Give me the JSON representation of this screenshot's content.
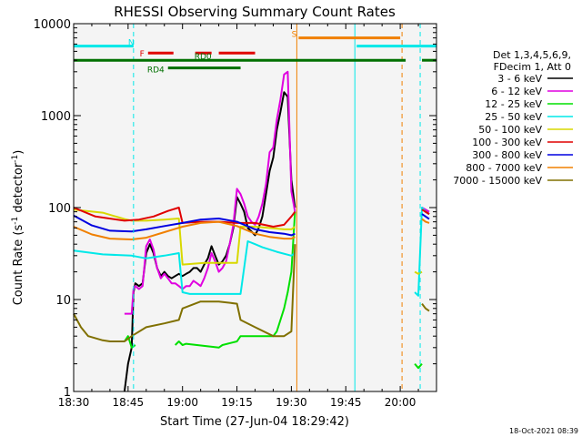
{
  "chart_data": {
    "type": "line",
    "title": "RHESSI Observing Summary Count Rates",
    "xlabel": "Start Time (27-Jun-04 18:29:42)",
    "ylabel_main": "Count Rate (s",
    "ylabel_sup1": "-1",
    "ylabel_mid": " detector",
    "ylabel_sup2": "-1",
    "ylabel_end": ")",
    "yscale": "log",
    "ylim": [
      1,
      10000
    ],
    "xlim_minutes": [
      0,
      100
    ],
    "x_ticks": [
      {
        "label": "18:30",
        "min": 0
      },
      {
        "label": "18:45",
        "min": 15
      },
      {
        "label": "19:00",
        "min": 30
      },
      {
        "label": "19:15",
        "min": 45
      },
      {
        "label": "19:30",
        "min": 60
      },
      {
        "label": "19:45",
        "min": 75
      },
      {
        "label": "20:00",
        "min": 90
      }
    ],
    "y_ticks": [
      {
        "label": "1",
        "v": 1
      },
      {
        "label": "10",
        "v": 10
      },
      {
        "label": "100",
        "v": 100
      },
      {
        "label": "1000",
        "v": 1000
      },
      {
        "label": "10000",
        "v": 10000
      }
    ],
    "legend": {
      "placement": "right",
      "header": [
        "Det 1,3,4,5,6,9,",
        "FDecim 1, Att 0"
      ],
      "entries": [
        {
          "label": "3 - 6 keV",
          "color": "#000000"
        },
        {
          "label": "6 - 12 keV",
          "color": "#e000e0"
        },
        {
          "label": "12 - 25 keV",
          "color": "#00e000"
        },
        {
          "label": "25 - 50 keV",
          "color": "#00e8e8"
        },
        {
          "label": "50 - 100 keV",
          "color": "#d8d800"
        },
        {
          "label": "100 - 300 keV",
          "color": "#e00000"
        },
        {
          "label": "300 - 800 keV",
          "color": "#0000e0"
        },
        {
          "label": "800 - 7000 keV",
          "color": "#f08000"
        },
        {
          "label": "7000 - 15000 keV",
          "color": "#807000"
        }
      ]
    },
    "flags": [
      {
        "label": "N",
        "color": "#00e8e8",
        "level": 5700,
        "segments": [
          [
            0,
            16.5
          ],
          [
            78,
            100
          ]
        ]
      },
      {
        "label": "F",
        "color": "#e00000",
        "level": 4800,
        "segments": [
          [
            20.5,
            27.5
          ],
          [
            33.5,
            38
          ],
          [
            40,
            50
          ]
        ]
      },
      {
        "label": "S",
        "color": "#f08000",
        "level": 7000,
        "segments": [
          [
            62,
            90
          ]
        ]
      },
      {
        "label": "RD0",
        "color": "#007000",
        "level": 4000,
        "segments": [
          [
            0,
            91.5
          ],
          [
            96,
            100
          ]
        ]
      },
      {
        "label": "RD4",
        "color": "#007000",
        "level": 3300,
        "segments": [
          [
            26,
            46
          ]
        ]
      }
    ],
    "vlines": [
      {
        "min": 0,
        "color": "#00e8e8",
        "dash": false
      },
      {
        "min": 16.5,
        "color": "#00e8e8",
        "dash": true
      },
      {
        "min": 61.5,
        "color": "#f08000",
        "dash": false
      },
      {
        "min": 77.5,
        "color": "#00e8e8",
        "dash": false
      },
      {
        "min": 90.5,
        "color": "#f08000",
        "dash": true
      },
      {
        "min": 95.5,
        "color": "#00e8e8",
        "dash": true
      }
    ],
    "series": [
      {
        "name": "3 - 6 keV",
        "color": "#000000",
        "x": [
          14,
          15,
          16,
          16.5,
          17,
          18,
          19,
          20,
          21,
          22,
          23,
          24,
          25,
          26,
          27,
          28,
          29,
          30,
          31,
          32,
          33,
          34,
          35,
          36,
          37,
          38,
          39,
          40,
          41,
          42,
          43,
          44,
          45,
          46,
          47,
          48,
          49,
          50,
          51,
          52,
          53,
          54,
          55,
          56,
          57,
          58,
          59,
          60,
          61,
          96,
          97,
          98
        ],
        "y": [
          1,
          2,
          3,
          12,
          15,
          14,
          15,
          32,
          40,
          32,
          22,
          18,
          20,
          18,
          17,
          18,
          19,
          18,
          19,
          20,
          22,
          22,
          20,
          24,
          28,
          38,
          30,
          24,
          26,
          30,
          40,
          60,
          130,
          110,
          90,
          60,
          55,
          50,
          60,
          80,
          140,
          250,
          350,
          700,
          1100,
          1800,
          1600,
          200,
          100,
          100,
          90,
          85
        ]
      },
      {
        "name": "6 - 12 keV",
        "color": "#e000e0",
        "x": [
          14,
          15,
          16,
          16.5,
          17,
          18,
          19,
          20,
          21,
          22,
          23,
          24,
          25,
          26,
          27,
          28,
          29,
          30,
          31,
          32,
          33,
          34,
          35,
          36,
          37,
          38,
          39,
          40,
          41,
          42,
          43,
          44,
          45,
          46,
          47,
          48,
          49,
          50,
          51,
          52,
          53,
          54,
          55,
          56,
          57,
          58,
          59,
          60,
          61,
          96,
          97,
          98
        ],
        "y": [
          7,
          7,
          7,
          13,
          14,
          13,
          14,
          38,
          45,
          35,
          22,
          17,
          19,
          17,
          15,
          15,
          14,
          13,
          14,
          14,
          16,
          15,
          14,
          17,
          22,
          32,
          26,
          20,
          22,
          26,
          40,
          65,
          160,
          140,
          110,
          80,
          70,
          65,
          80,
          110,
          180,
          400,
          450,
          900,
          1500,
          2800,
          3000,
          150,
          90,
          100,
          95,
          90
        ]
      },
      {
        "name": "12 - 25 keV",
        "color": "#00e000",
        "x": [
          0,
          14,
          15,
          16,
          17,
          28,
          29,
          30,
          31,
          40,
          41,
          45,
          46,
          52,
          53,
          54,
          55,
          56,
          57,
          58,
          59,
          60,
          61,
          94,
          95,
          96
        ],
        "y": [
          3.5,
          3.5,
          4,
          3,
          3.2,
          3.2,
          3.5,
          3.2,
          3.3,
          3,
          3.2,
          3.5,
          4,
          4,
          4,
          4,
          4,
          4.5,
          6,
          8,
          12,
          20,
          90,
          2,
          1.8,
          2
        ]
      },
      {
        "name": "25 - 50 keV",
        "color": "#00e8e8",
        "x": [
          0,
          8,
          16,
          20,
          25,
          29,
          30,
          32,
          36,
          40,
          44,
          46,
          48,
          50,
          52,
          56,
          60,
          61,
          94,
          95,
          96,
          97,
          98
        ],
        "y": [
          34,
          31,
          30,
          28,
          30,
          32,
          12,
          11.5,
          11.5,
          11.5,
          11.5,
          11.5,
          43,
          40,
          37,
          33,
          30,
          32,
          12,
          11,
          100,
          90,
          85
        ]
      },
      {
        "name": "50 - 100 keV",
        "color": "#d8d800",
        "x": [
          0,
          8,
          14,
          16,
          20,
          25,
          29,
          30,
          36,
          40,
          45,
          46,
          50,
          54,
          58,
          60,
          61,
          94,
          95,
          96
        ],
        "y": [
          95,
          88,
          75,
          72,
          72,
          74,
          76,
          24,
          25,
          25,
          25,
          62,
          62,
          60,
          58,
          58,
          62,
          20,
          19,
          20
        ]
      },
      {
        "name": "100 - 300 keV",
        "color": "#e00000",
        "x": [
          0,
          6,
          14,
          18,
          22,
          26,
          29,
          30,
          35,
          40,
          45,
          50,
          55,
          58,
          60,
          61,
          96,
          97,
          98
        ],
        "y": [
          100,
          80,
          72,
          74,
          80,
          92,
          100,
          68,
          70,
          70,
          68,
          68,
          62,
          65,
          80,
          90,
          95,
          90,
          85
        ]
      },
      {
        "name": "300 - 800 keV",
        "color": "#0000e0",
        "x": [
          0,
          5,
          10,
          16,
          20,
          25,
          30,
          35,
          40,
          45,
          50,
          54,
          58,
          60,
          61,
          96,
          97,
          98
        ],
        "y": [
          82,
          64,
          56,
          55,
          58,
          63,
          68,
          74,
          76,
          70,
          58,
          54,
          52,
          50,
          52,
          85,
          80,
          75
        ]
      },
      {
        "name": "800 - 7000 keV",
        "color": "#f08000",
        "x": [
          0,
          5,
          10,
          16,
          20,
          25,
          30,
          35,
          40,
          45,
          50,
          54,
          58,
          60,
          61,
          96,
          97,
          98
        ],
        "y": [
          62,
          51,
          46,
          45,
          47,
          54,
          62,
          68,
          70,
          63,
          52,
          48,
          46,
          46,
          48,
          75,
          70,
          68
        ]
      },
      {
        "name": "7000 - 15000 keV",
        "color": "#807000",
        "x": [
          0,
          2,
          4,
          8,
          10,
          14,
          16,
          20,
          25,
          29,
          30,
          35,
          40,
          45,
          46,
          50,
          55,
          58,
          60,
          61,
          96,
          97,
          98
        ],
        "y": [
          7,
          5,
          4,
          3.6,
          3.5,
          3.5,
          4,
          5,
          5.5,
          6,
          8,
          9.5,
          9.5,
          9,
          6,
          5,
          4,
          4,
          4.5,
          40,
          9,
          8,
          7.5
        ]
      }
    ],
    "grid": false,
    "footer_timestamp": "18-Oct-2021 08:39"
  }
}
